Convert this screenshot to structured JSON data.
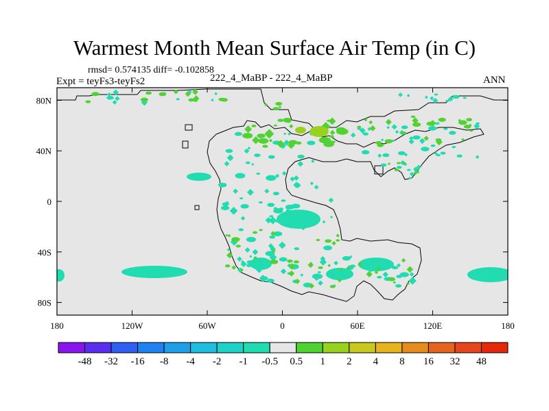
{
  "title": "Warmest Month Mean Surface Air Temp (in C)",
  "stats_line": "rmsd= 0.574135 diff= -0.102858",
  "left_subtitle": "Expt = teyFs3-teyFs2",
  "center_subtitle": "222_4_MaBP - 222_4_MaBP",
  "right_subtitle": "ANN",
  "chart_data": {
    "type": "heatmap",
    "map_type": "global lat-lon contour map of difference field",
    "x_range": [
      -180,
      180
    ],
    "y_range": [
      -90,
      90
    ],
    "x_tick_labels": [
      "180",
      "120W",
      "60W",
      "0",
      "60E",
      "120E",
      "180"
    ],
    "x_tick_values": [
      -180,
      -120,
      -60,
      0,
      60,
      120,
      180
    ],
    "y_tick_labels": [
      "80N",
      "40N",
      "0",
      "40S",
      "80S"
    ],
    "y_tick_values": [
      80,
      40,
      0,
      -40,
      -80
    ],
    "background_fill": "#e6e6e6",
    "colorbar": {
      "position": "bottom",
      "labels": [
        "-48",
        "-32",
        "-16",
        "-8",
        "-4",
        "-2",
        "-1",
        "-0.5",
        "0.5",
        "1",
        "2",
        "4",
        "8",
        "16",
        "32",
        "48"
      ],
      "colors": [
        "#8a14f0",
        "#5a2ef0",
        "#2f5ff0",
        "#1e82f0",
        "#1ea0e8",
        "#1ebee0",
        "#1ed2c8",
        "#20dcb0",
        "#e6e6e6",
        "#50d232",
        "#96d21e",
        "#c8c81e",
        "#e6b41e",
        "#e68c1e",
        "#e6641e",
        "#e6461e",
        "#e6280a"
      ]
    },
    "observations": [
      "Most of the globe within -0.5 to 0.5 (grey)",
      "Scattered cyan patches (-1 to -0.5) over the continent and South Pacific",
      "Scattered green patches (0.5 to 2) over northern and southern land areas"
    ]
  }
}
